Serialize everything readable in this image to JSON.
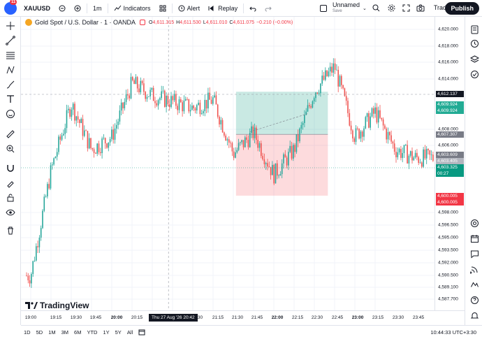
{
  "toolbar": {
    "avatar_badge": "11",
    "symbol": "XAUUSD",
    "interval": "1m",
    "indicators": "Indicators",
    "alert": "Alert",
    "replay": "Replay",
    "layout_name": "Unnamed",
    "layout_status": "Save",
    "trade": "Trade",
    "publish": "Publish"
  },
  "legend": {
    "title": "Gold Spot / U.S. Dollar · 1 · OANDA",
    "o_label": "O",
    "o": "4,611.315",
    "h_label": "H",
    "h": "4,611.530",
    "l_label": "L",
    "l": "4,611.010",
    "c_label": "C",
    "c": "4,611.075",
    "change": "−0.210 (−0.00%)"
  },
  "price_axis": {
    "labels": [
      "4,620.000",
      "4,618.000",
      "4,616.000",
      "4,614.000",
      "4,608.000",
      "4,606.000",
      "4,598.000",
      "4,596.500",
      "4,595.000",
      "4,593.500",
      "4,592.000",
      "4,590.500",
      "4,589.100",
      "4,587.700"
    ],
    "tags": {
      "crosshair": "4,612.137",
      "tp1": "4,609.924",
      "tp2": "4,609.924",
      "entry": "4,607.307",
      "last1": "4,603.609",
      "last2": "4,603.405",
      "current": "4,603.325",
      "countdown": "00:27",
      "sl1": "4,600.005",
      "sl2": "4,600.005"
    }
  },
  "time_axis": {
    "labels": [
      "19:00",
      "19:15",
      "19:30",
      "19:45",
      "20:00",
      "20:15",
      "20:30",
      "21:15",
      "21:30",
      "21:45",
      "22:00",
      "22:15",
      "22:30",
      "22:45",
      "23:00",
      "23:15",
      "23:30",
      "23:45"
    ],
    "crosshair": "Thu 27 Aug '26  20:42"
  },
  "bottom": {
    "ranges": [
      "1D",
      "5D",
      "1M",
      "3M",
      "6M",
      "YTD",
      "1Y",
      "5Y",
      "All"
    ],
    "clock": "10:44:33 UTC+3:30"
  },
  "watermark": "TradingView",
  "colors": {
    "up": "#26a69a",
    "down": "#ef5350",
    "publish": "#131722",
    "accent": "#2962ff"
  },
  "chart_data": {
    "type": "candlestick",
    "symbol": "XAUUSD",
    "interval": "1m",
    "approx_close_path": [
      {
        "t": "19:00",
        "p": 4590.5
      },
      {
        "t": "19:15",
        "p": 4603.0
      },
      {
        "t": "19:30",
        "p": 4611.0
      },
      {
        "t": "19:45",
        "p": 4605.5
      },
      {
        "t": "20:00",
        "p": 4607.0
      },
      {
        "t": "20:15",
        "p": 4613.5
      },
      {
        "t": "20:30",
        "p": 4612.0
      },
      {
        "t": "21:00",
        "p": 4610.5
      },
      {
        "t": "21:15",
        "p": 4611.5
      },
      {
        "t": "21:30",
        "p": 4605.0
      },
      {
        "t": "21:45",
        "p": 4607.5
      },
      {
        "t": "22:00",
        "p": 4602.5
      },
      {
        "t": "22:15",
        "p": 4605.5
      },
      {
        "t": "22:30",
        "p": 4612.5
      },
      {
        "t": "22:45",
        "p": 4615.5
      },
      {
        "t": "23:00",
        "p": 4607.0
      },
      {
        "t": "23:15",
        "p": 4610.0
      },
      {
        "t": "23:30",
        "p": 4605.5
      },
      {
        "t": "23:45",
        "p": 4604.5
      }
    ],
    "position_tool": {
      "entry": 4607.307,
      "take_profit": 4609.924,
      "stop_loss": 4600.005
    }
  }
}
